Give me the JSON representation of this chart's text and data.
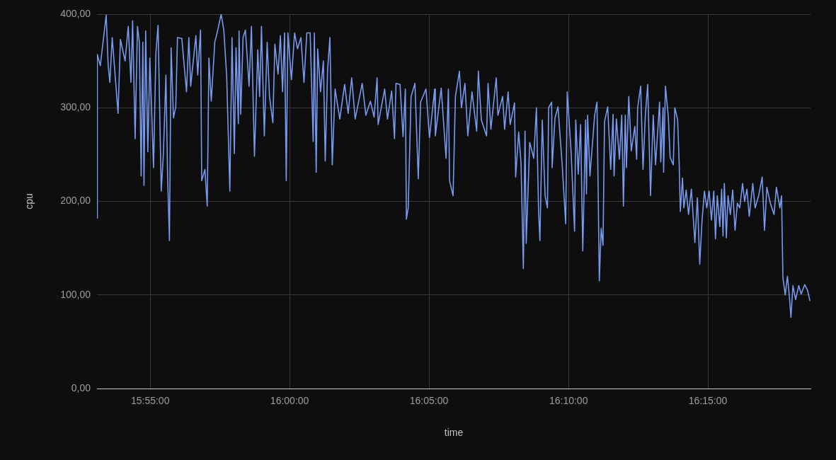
{
  "chart_data": {
    "type": "line",
    "xlabel": "time",
    "ylabel": "cpu",
    "color": "#7799ee",
    "marker": "none",
    "grid": true,
    "xlim": [
      15.8849,
      16.3113
    ],
    "xticks": [
      {
        "value": 15.9167,
        "label": "15:55:00"
      },
      {
        "value": 16,
        "label": "16:00:00"
      },
      {
        "value": 16.0833,
        "label": "16:05:00"
      },
      {
        "value": 16.1667,
        "label": "16:10:00"
      },
      {
        "value": 16.25,
        "label": "16:15:00"
      }
    ],
    "ylim": [
      0,
      400
    ],
    "yticks": [
      {
        "value": 0,
        "label": "0,00"
      },
      {
        "value": 100,
        "label": "100,00"
      },
      {
        "value": 200,
        "label": "200,00"
      },
      {
        "value": 300,
        "label": "300,00"
      },
      {
        "value": 400,
        "label": "400,00"
      }
    ],
    "x": [
      15.8849,
      15.8851,
      15.8869,
      15.8904,
      15.8916,
      15.8926,
      15.894,
      15.8975,
      15.8989,
      15.9017,
      15.9036,
      15.9052,
      15.9062,
      15.9077,
      15.9091,
      15.9102,
      15.9113,
      15.9123,
      15.913,
      15.914,
      15.9153,
      15.9165,
      15.9187,
      15.9201,
      15.9214,
      15.9233,
      15.9246,
      15.9261,
      15.9271,
      15.9282,
      15.9292,
      15.9306,
      15.932,
      15.933,
      15.9356,
      15.9384,
      15.9398,
      15.9409,
      15.944,
      15.9451,
      15.9468,
      15.9475,
      15.9494,
      15.9508,
      15.9518,
      15.9532,
      15.9553,
      15.9567,
      15.9591,
      15.9607,
      15.9624,
      15.9643,
      15.9656,
      15.967,
      15.968,
      15.9694,
      15.9698,
      15.9708,
      15.9722,
      15.9736,
      15.9758,
      15.9772,
      15.979,
      15.981,
      15.9821,
      15.9832,
      15.9849,
      15.9866,
      15.988,
      15.99,
      15.9912,
      15.9931,
      15.9945,
      15.9958,
      15.997,
      15.998,
      15.999,
      16.0011,
      16.003,
      16.0047,
      16.0068,
      16.0086,
      16.0103,
      16.0123,
      16.0141,
      16.0148,
      16.0159,
      16.0168,
      16.0185,
      16.0202,
      16.0213,
      16.0227,
      16.0241,
      16.0255,
      16.0272,
      16.03,
      16.0329,
      16.035,
      16.0371,
      16.0392,
      16.0434,
      16.0456,
      16.0483,
      16.0505,
      16.0523,
      16.0529,
      16.0568,
      16.0585,
      16.061,
      16.0627,
      16.0636,
      16.066,
      16.0678,
      16.0692,
      16.0698,
      16.0709,
      16.0726,
      16.0749,
      16.0769,
      16.0783,
      16.0815,
      16.0836,
      16.0867,
      16.0871,
      16.0906,
      16.0935,
      16.0949,
      16.0956,
      16.0977,
      16.0991,
      16.1015,
      16.1027,
      16.1048,
      16.1065,
      16.109,
      16.1118,
      16.1128,
      16.1146,
      16.1177,
      16.1186,
      16.1203,
      16.1235,
      16.1245,
      16.1273,
      16.1285,
      16.1306,
      16.1318,
      16.1344,
      16.1351,
      16.1369,
      16.1383,
      16.1397,
      16.1407,
      16.1414,
      16.1435,
      16.1459,
      16.1475,
      16.1488,
      16.1496,
      16.151,
      16.1527,
      16.1541,
      16.1548,
      16.1566,
      16.1569,
      16.1586,
      16.1604,
      16.1629,
      16.165,
      16.1659,
      16.1682,
      16.1703,
      16.171,
      16.1725,
      16.1739,
      16.1752,
      16.1769,
      16.1774,
      16.1781,
      16.1795,
      16.1823,
      16.1837,
      16.1851,
      16.1862,
      16.1873,
      16.1882,
      16.1901,
      16.1919,
      16.1933,
      16.1939,
      16.1953,
      16.1971,
      16.1985,
      16.1995,
      16.2006,
      16.2013,
      16.2027,
      16.2042,
      16.2063,
      16.2074,
      16.208,
      16.2098,
      16.2112,
      16.2126,
      16.214,
      16.2157,
      16.2173,
      16.2187,
      16.2211,
      16.2218,
      16.2232,
      16.2235,
      16.2246,
      16.2263,
      16.2274,
      16.2293,
      16.2302,
      16.2319,
      16.2328,
      16.2335,
      16.2348,
      16.2356,
      16.237,
      16.2384,
      16.2401,
      16.2422,
      16.2437,
      16.2451,
      16.2465,
      16.2479,
      16.2493,
      16.2507,
      16.2521,
      16.2535,
      16.2545,
      16.2556,
      16.2571,
      16.2582,
      16.259,
      16.2598,
      16.261,
      16.262,
      16.2634,
      16.2648,
      16.2662,
      16.2676,
      16.269,
      16.2707,
      16.2719,
      16.2733,
      16.2747,
      16.2768,
      16.2782,
      16.2803,
      16.2824,
      16.2838,
      16.2852,
      16.2873,
      16.2895,
      16.2909,
      16.293,
      16.294,
      16.2948,
      16.2962,
      16.2975,
      16.2986,
      16.2996,
      16.3008,
      16.3024,
      16.3043,
      16.3057,
      16.3078,
      16.3095,
      16.3109
    ],
    "values": [
      182,
      357,
      345,
      399,
      345,
      327,
      375,
      294,
      373,
      350,
      387,
      327,
      393,
      267,
      387,
      370,
      227,
      370,
      217,
      382,
      253,
      353,
      236,
      358,
      388,
      211,
      251,
      335,
      227,
      158,
      364,
      289,
      301,
      375,
      374,
      317,
      375,
      323,
      377,
      335,
      383,
      222,
      234,
      195,
      353,
      307,
      370,
      380,
      400,
      383,
      334,
      211,
      375,
      251,
      364,
      283,
      382,
      293,
      375,
      383,
      323,
      387,
      248,
      362,
      312,
      387,
      270,
      370,
      312,
      284,
      368,
      336,
      377,
      317,
      380,
      222,
      380,
      330,
      380,
      363,
      375,
      327,
      380,
      380,
      264,
      380,
      231,
      363,
      317,
      350,
      243,
      340,
      375,
      239,
      320,
      288,
      325,
      294,
      332,
      288,
      326,
      292,
      307,
      290,
      332,
      282,
      320,
      288,
      318,
      267,
      326,
      325,
      269,
      320,
      181,
      193,
      312,
      326,
      224,
      306,
      320,
      268,
      320,
      270,
      321,
      246,
      320,
      222,
      206,
      312,
      339,
      300,
      326,
      270,
      317,
      275,
      339,
      287,
      270,
      326,
      277,
      332,
      292,
      312,
      277,
      317,
      282,
      305,
      226,
      274,
      241,
      128,
      275,
      155,
      263,
      246,
      300,
      189,
      158,
      287,
      206,
      193,
      300,
      306,
      236,
      289,
      301,
      239,
      176,
      317,
      254,
      168,
      287,
      229,
      282,
      147,
      287,
      208,
      292,
      227,
      292,
      306,
      115,
      171,
      153,
      285,
      301,
      234,
      293,
      227,
      288,
      245,
      292,
      195,
      292,
      236,
      312,
      254,
      280,
      245,
      300,
      323,
      234,
      292,
      325,
      206,
      292,
      239,
      306,
      242,
      300,
      231,
      323,
      291,
      247,
      239,
      300,
      287,
      242,
      189,
      225,
      193,
      212,
      186,
      213,
      156,
      204,
      133,
      180,
      211,
      193,
      211,
      180,
      211,
      160,
      206,
      173,
      213,
      163,
      219,
      161,
      206,
      186,
      212,
      169,
      198,
      193,
      219,
      200,
      213,
      184,
      219,
      193,
      206,
      226,
      169,
      215,
      198,
      186,
      215,
      193,
      206,
      118,
      100,
      120,
      100,
      76,
      110,
      95,
      110,
      101,
      111,
      105,
      94
    ]
  }
}
